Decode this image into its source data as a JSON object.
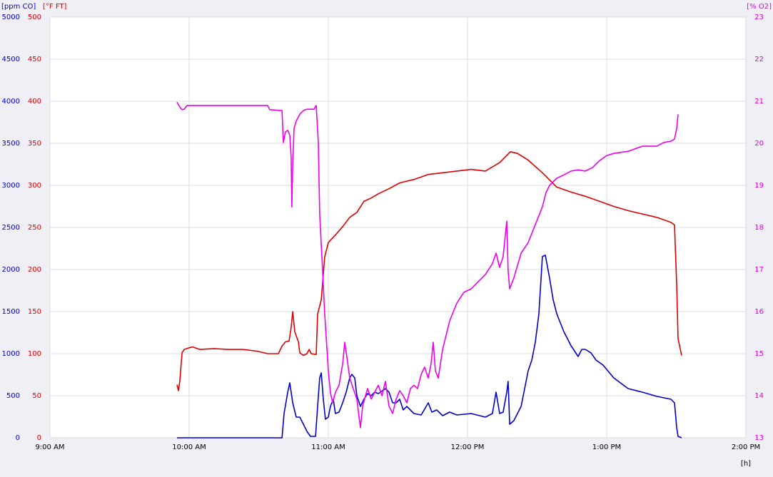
{
  "chart_data": {
    "type": "line",
    "xlabel": "[h]",
    "grid": true,
    "xlim": [
      9,
      14
    ],
    "xticks": [
      {
        "value": 9,
        "label": "9:00 AM"
      },
      {
        "value": 10,
        "label": "10:00 AM"
      },
      {
        "value": 11,
        "label": "11:00 AM"
      },
      {
        "value": 12,
        "label": "12:00 PM"
      },
      {
        "value": 13,
        "label": "1:00 PM"
      },
      {
        "value": 14,
        "label": "2:00 PM"
      }
    ],
    "axes": [
      {
        "label": "[ppm CO]",
        "color": "#0000cc",
        "lim": [
          0,
          5000
        ],
        "ticks": [
          0,
          500,
          1000,
          1500,
          2000,
          2500,
          3000,
          3500,
          4000,
          4500,
          5000
        ]
      },
      {
        "label": "[°F FT]",
        "color": "#dd0000",
        "lim": [
          0,
          500
        ],
        "ticks": [
          0,
          50,
          100,
          150,
          200,
          250,
          300,
          350,
          400,
          450,
          500
        ]
      },
      {
        "label": "[% O2]",
        "color": "#dd00dd",
        "lim": [
          13,
          23
        ],
        "ticks": [
          13,
          14,
          15,
          16,
          17,
          18,
          19,
          20,
          21,
          22,
          23
        ]
      }
    ],
    "series": [
      {
        "axis": 0,
        "color": "#0000cc",
        "x": [
          9.913,
          10.179,
          10.667,
          10.682,
          10.708,
          10.723,
          10.744,
          10.769,
          10.795,
          10.821,
          10.846,
          10.872,
          10.908,
          10.923,
          10.938,
          10.949,
          10.964,
          10.979,
          11.0,
          11.015,
          11.036,
          11.051,
          11.077,
          11.103,
          11.128,
          11.154,
          11.169,
          11.19,
          11.205,
          11.231,
          11.256,
          11.282,
          11.308,
          11.333,
          11.359,
          11.41,
          11.436,
          11.462,
          11.487,
          11.513,
          11.538,
          11.564,
          11.615,
          11.667,
          11.718,
          11.744,
          11.779,
          11.821,
          11.872,
          11.923,
          12.026,
          12.128,
          12.179,
          12.205,
          12.231,
          12.256,
          12.282,
          12.292,
          12.303,
          12.333,
          12.385,
          12.436,
          12.462,
          12.487,
          12.513,
          12.538,
          12.559,
          12.59,
          12.615,
          12.641,
          12.692,
          12.744,
          12.795,
          12.821,
          12.846,
          12.887,
          12.923,
          12.974,
          13.051,
          13.154,
          13.256,
          13.359,
          13.462,
          13.487,
          13.503,
          13.513,
          13.538
        ],
        "values": [
          0,
          0,
          0,
          288,
          542,
          653,
          415,
          246,
          246,
          161,
          76,
          17,
          17,
          373,
          712,
          771,
          458,
          220,
          246,
          373,
          458,
          288,
          305,
          415,
          542,
          712,
          754,
          712,
          500,
          373,
          458,
          525,
          500,
          542,
          525,
          585,
          542,
          415,
          415,
          458,
          331,
          373,
          288,
          271,
          415,
          305,
          331,
          263,
          305,
          271,
          288,
          246,
          288,
          542,
          288,
          305,
          542,
          670,
          161,
          203,
          373,
          797,
          924,
          1136,
          1475,
          2153,
          2170,
          1898,
          1644,
          1475,
          1263,
          1093,
          966,
          1051,
          1051,
          1009,
          924,
          864,
          712,
          585,
          542,
          492,
          458,
          415,
          119,
          17,
          0
        ]
      },
      {
        "axis": 1,
        "color": "#dd0000",
        "x": [
          9.913,
          9.923,
          9.933,
          9.949,
          9.964,
          10.0,
          10.026,
          10.077,
          10.179,
          10.282,
          10.385,
          10.487,
          10.564,
          10.641,
          10.667,
          10.692,
          10.718,
          10.733,
          10.744,
          10.759,
          10.785,
          10.795,
          10.821,
          10.846,
          10.862,
          10.877,
          10.913,
          10.923,
          10.949,
          10.974,
          11.0,
          11.051,
          11.103,
          11.154,
          11.205,
          11.256,
          11.308,
          11.359,
          11.436,
          11.513,
          11.615,
          11.718,
          11.821,
          11.923,
          12.026,
          12.128,
          12.231,
          12.308,
          12.359,
          12.436,
          12.538,
          12.641,
          12.744,
          12.846,
          12.949,
          13.051,
          13.154,
          13.256,
          13.359,
          13.462,
          13.487,
          13.503,
          13.513,
          13.538
        ],
        "values": [
          63,
          56,
          67,
          101,
          105,
          107,
          108,
          105,
          106,
          105,
          105,
          103,
          100,
          100,
          109,
          114,
          115,
          131,
          150,
          126,
          114,
          101,
          98,
          100,
          105,
          100,
          99,
          147,
          164,
          215,
          232,
          241,
          251,
          262,
          268,
          281,
          285,
          290,
          296,
          303,
          307,
          313,
          315,
          317,
          319,
          317,
          327,
          340,
          338,
          330,
          315,
          298,
          292,
          287,
          281,
          275,
          270,
          266,
          262,
          256,
          253,
          181,
          118,
          98
        ]
      },
      {
        "axis": 2,
        "color": "#ee00ee",
        "x": [
          9.913,
          9.933,
          9.949,
          9.964,
          9.985,
          10.179,
          10.564,
          10.579,
          10.667,
          10.677,
          10.692,
          10.708,
          10.723,
          10.733,
          10.738,
          10.744,
          10.754,
          10.769,
          10.795,
          10.821,
          10.846,
          10.897,
          10.913,
          10.928,
          10.938,
          10.959,
          10.974,
          10.99,
          11.0,
          11.015,
          11.031,
          11.051,
          11.077,
          11.103,
          11.118,
          11.133,
          11.154,
          11.179,
          11.205,
          11.221,
          11.231,
          11.246,
          11.267,
          11.282,
          11.308,
          11.333,
          11.359,
          11.385,
          11.41,
          11.436,
          11.462,
          11.487,
          11.513,
          11.538,
          11.564,
          11.59,
          11.615,
          11.641,
          11.667,
          11.692,
          11.718,
          11.738,
          11.754,
          11.769,
          11.79,
          11.821,
          11.872,
          11.923,
          11.974,
          12.026,
          12.077,
          12.128,
          12.179,
          12.205,
          12.231,
          12.256,
          12.282,
          12.292,
          12.303,
          12.333,
          12.385,
          12.436,
          12.487,
          12.538,
          12.564,
          12.59,
          12.641,
          12.692,
          12.744,
          12.795,
          12.846,
          12.897,
          12.949,
          13.0,
          13.051,
          13.154,
          13.256,
          13.359,
          13.41,
          13.462,
          13.487,
          13.503,
          13.513
        ],
        "values": [
          20.98,
          20.86,
          20.8,
          20.81,
          20.9,
          20.9,
          20.9,
          20.8,
          20.78,
          20.02,
          20.27,
          20.31,
          20.19,
          19.68,
          18.49,
          19.51,
          20.36,
          20.53,
          20.69,
          20.78,
          20.81,
          20.81,
          20.9,
          20.02,
          18.32,
          16.97,
          15.95,
          15.1,
          14.59,
          14.08,
          13.83,
          14.08,
          14.25,
          14.76,
          15.27,
          14.93,
          14.42,
          14.17,
          13.92,
          13.49,
          13.24,
          13.75,
          14.0,
          14.17,
          13.92,
          14.08,
          14.25,
          14.0,
          14.34,
          13.75,
          13.58,
          13.92,
          14.12,
          14.0,
          13.83,
          14.17,
          14.25,
          14.17,
          14.51,
          14.68,
          14.42,
          14.76,
          15.27,
          14.59,
          14.42,
          15.1,
          15.78,
          16.2,
          16.46,
          16.54,
          16.71,
          16.88,
          17.14,
          17.39,
          17.05,
          17.31,
          18.15,
          16.97,
          16.54,
          16.8,
          17.39,
          17.64,
          18.07,
          18.49,
          18.83,
          19.0,
          19.17,
          19.25,
          19.34,
          19.37,
          19.34,
          19.42,
          19.59,
          19.71,
          19.76,
          19.81,
          19.93,
          19.93,
          20.02,
          20.05,
          20.1,
          20.36,
          20.69
        ]
      }
    ]
  }
}
